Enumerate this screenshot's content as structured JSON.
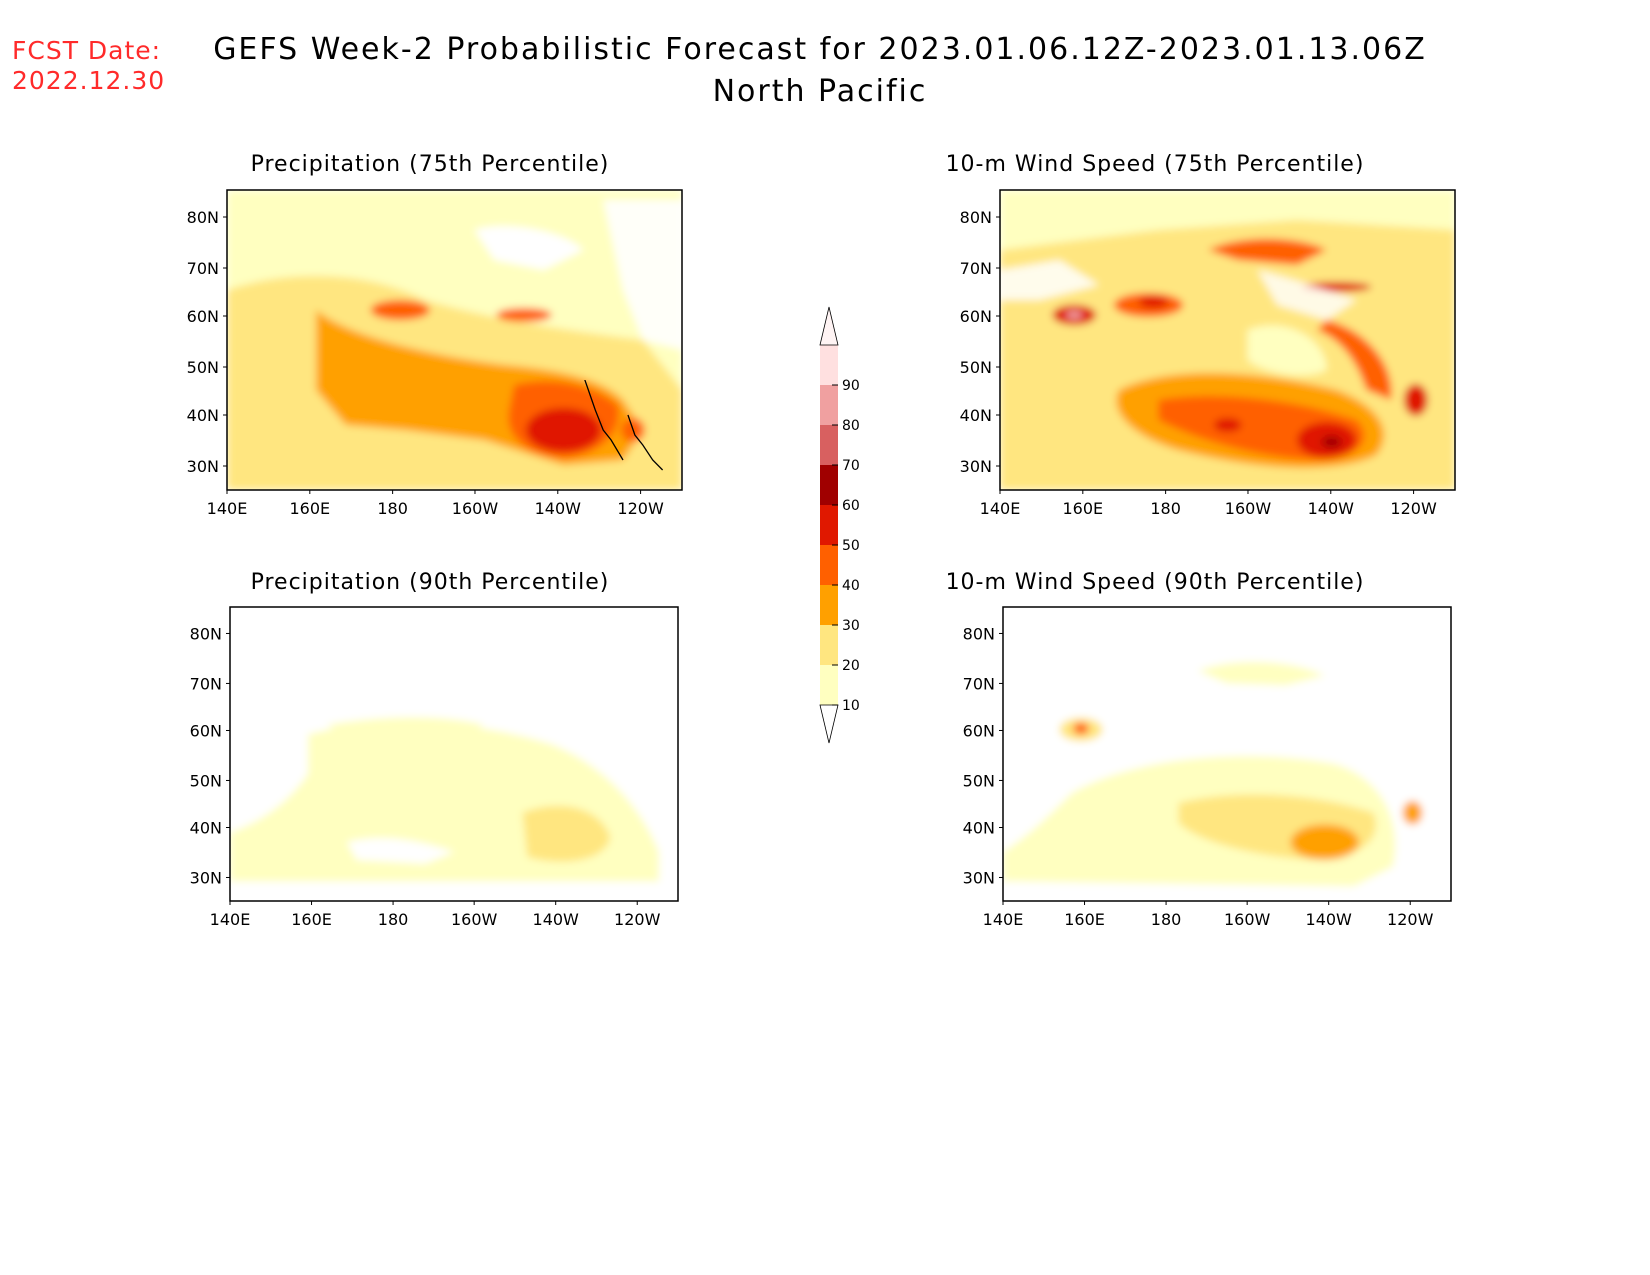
{
  "header": {
    "fcst_label": "FCST Date:",
    "fcst_date": "2022.12.30",
    "title": "GEFS Week-2 Probabilistic Forecast for 2023.01.06.12Z-2023.01.13.06Z",
    "subtitle": "North Pacific"
  },
  "panels": [
    {
      "id": "precip-75",
      "title": "Precipitation (75th Percentile)"
    },
    {
      "id": "wind-75",
      "title": "10-m Wind Speed (75th Percentile)"
    },
    {
      "id": "precip-90",
      "title": "Precipitation (90th Percentile)"
    },
    {
      "id": "wind-90",
      "title": "10-m Wind Speed (90th Percentile)"
    }
  ],
  "axes": {
    "lat_labels": [
      "80N",
      "70N",
      "60N",
      "50N",
      "40N",
      "30N"
    ],
    "lon_labels": [
      "140E",
      "160E",
      "180",
      "160W",
      "140W",
      "120W"
    ]
  },
  "colorbar": {
    "levels": [
      "10",
      "20",
      "30",
      "40",
      "50",
      "60",
      "70",
      "80",
      "90"
    ],
    "colors": [
      "#ffffc0",
      "#ffe680",
      "#ffa000",
      "#ff6000",
      "#e01800",
      "#a00000",
      "#d86060",
      "#f0a0a0",
      "#ffe0e0"
    ]
  }
}
